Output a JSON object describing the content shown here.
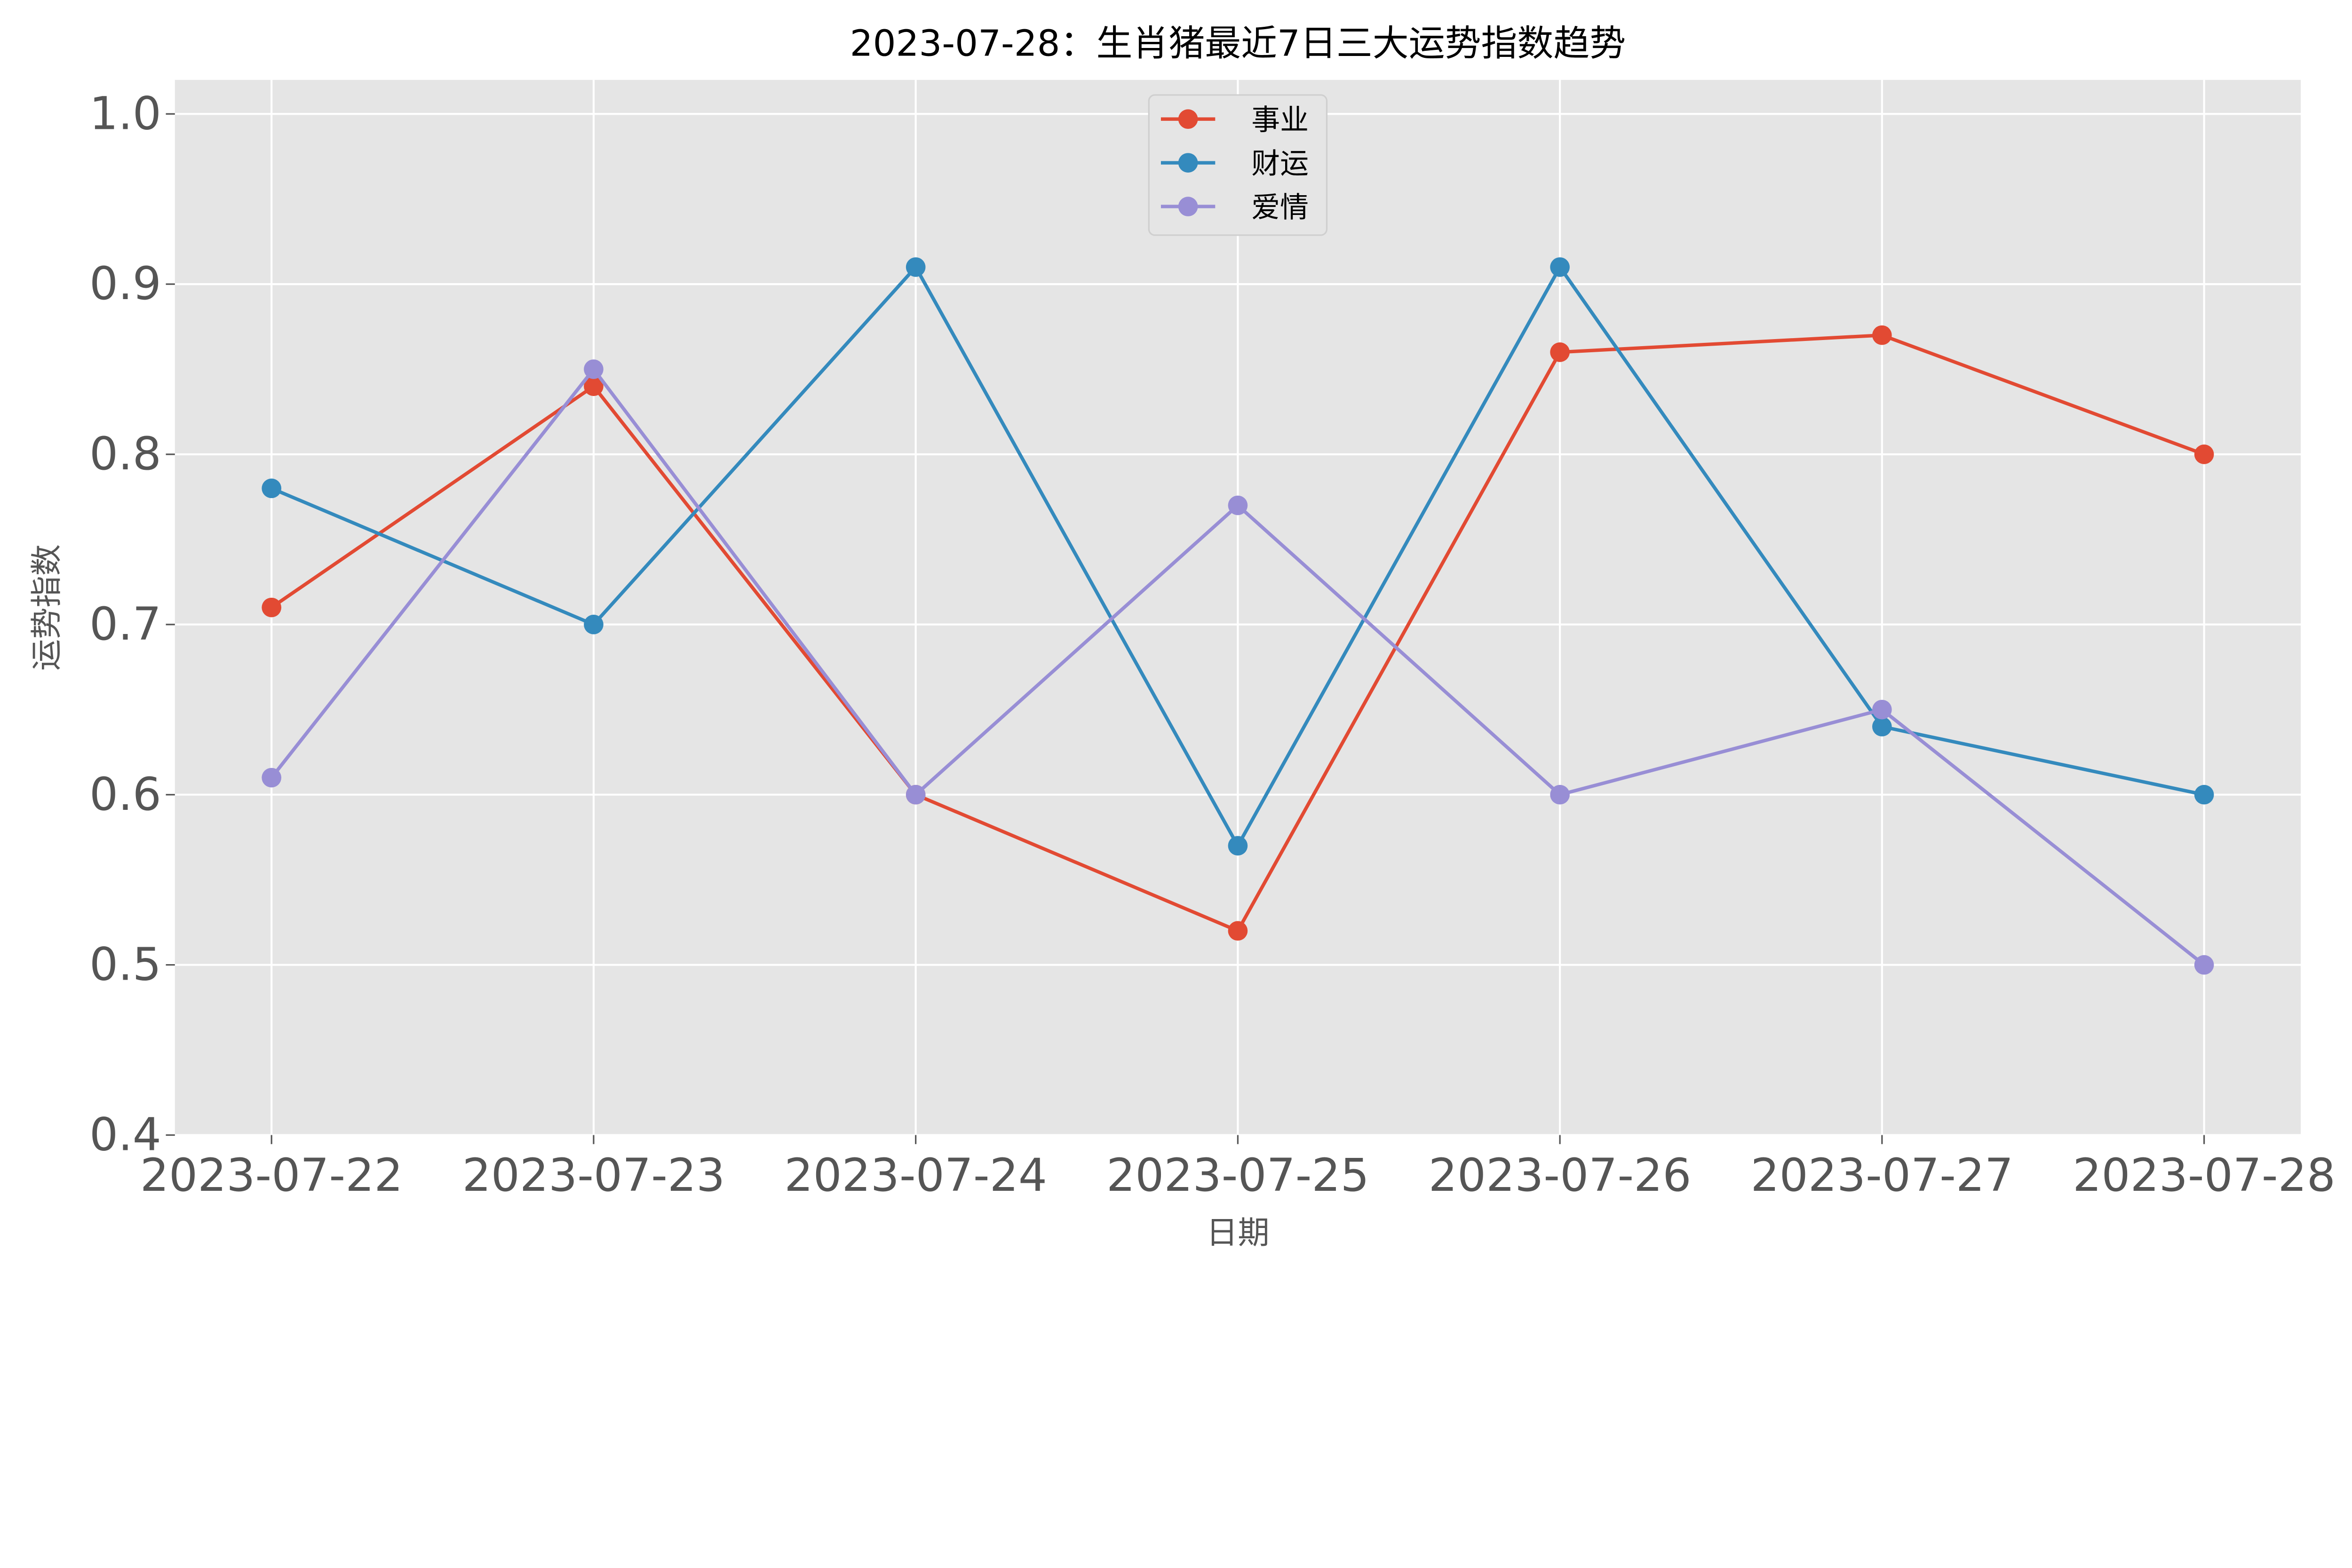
{
  "chart_data": {
    "type": "line",
    "title": "2023-07-28：生肖猪最近7日三大运势指数趋势",
    "xlabel": "日期",
    "ylabel": "运势指数",
    "categories": [
      "2023-07-22",
      "2023-07-23",
      "2023-07-24",
      "2023-07-25",
      "2023-07-26",
      "2023-07-27",
      "2023-07-28"
    ],
    "ylim": [
      0.4,
      1.02
    ],
    "yticks": [
      "0.4",
      "0.5",
      "0.6",
      "0.7",
      "0.8",
      "0.9",
      "1.0"
    ],
    "grid": true,
    "legend_placement": "upper-center",
    "marker": "circle",
    "background": "#e5e5e5",
    "series": [
      {
        "name": "事业",
        "color": "#e24a33",
        "values": [
          0.71,
          0.84,
          0.6,
          0.52,
          0.86,
          0.87,
          0.8
        ]
      },
      {
        "name": "财运",
        "color": "#348abd",
        "values": [
          0.78,
          0.7,
          0.91,
          0.57,
          0.91,
          0.64,
          0.6
        ]
      },
      {
        "name": "爱情",
        "color": "#988ed5",
        "values": [
          0.61,
          0.85,
          0.6,
          0.77,
          0.6,
          0.65,
          0.5
        ]
      }
    ]
  }
}
